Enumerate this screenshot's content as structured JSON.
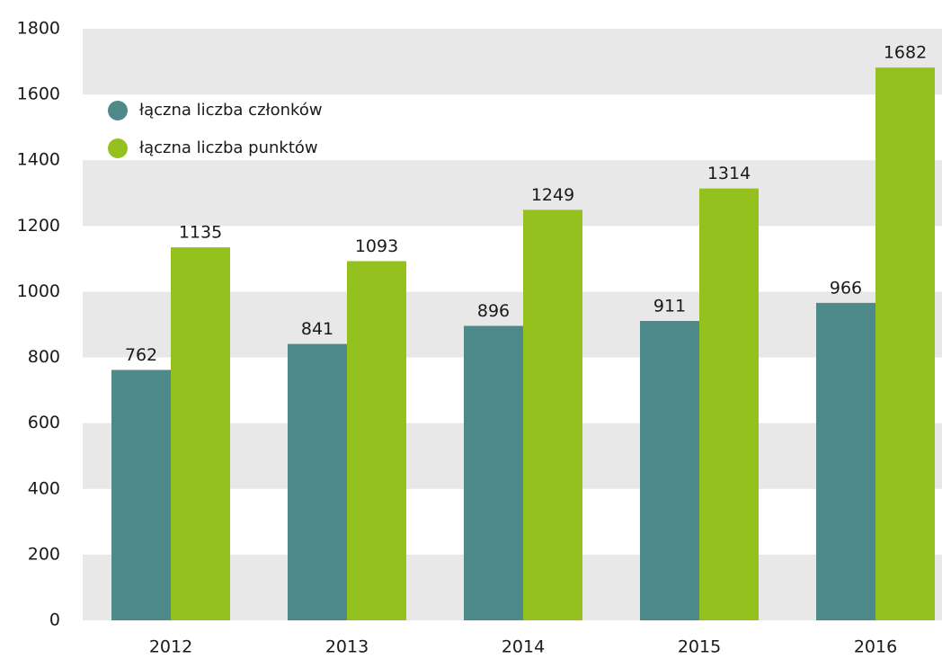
{
  "chart_data": {
    "type": "bar",
    "categories": [
      "2012",
      "2013",
      "2014",
      "2015",
      "2016"
    ],
    "series": [
      {
        "name": "łączna liczba członków",
        "color": "#4f8a8b",
        "values": [
          762,
          841,
          896,
          911,
          966
        ]
      },
      {
        "name": "łączna liczba punktów",
        "color": "#95c11f",
        "values": [
          1135,
          1093,
          1249,
          1314,
          1682
        ]
      }
    ],
    "ylim": [
      0,
      1800
    ],
    "yticks": [
      0,
      200,
      400,
      600,
      800,
      1000,
      1200,
      1400,
      1600,
      1800
    ],
    "grid": true,
    "legend": "upper left"
  }
}
